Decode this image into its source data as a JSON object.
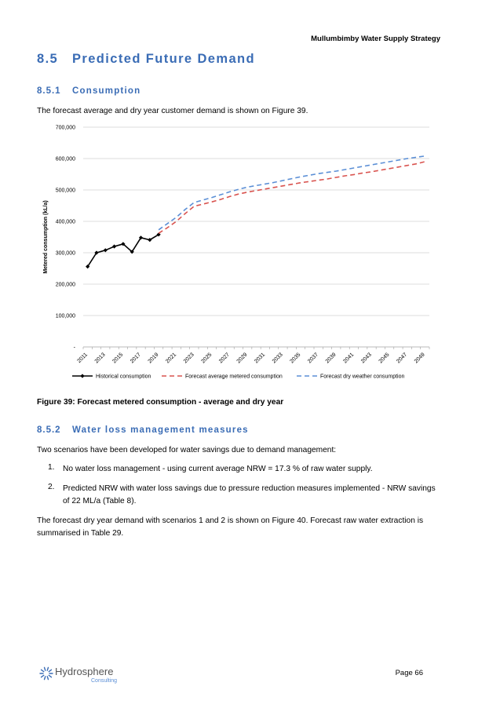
{
  "header": {
    "doc_title": "Mullumbimby Water Supply Strategy"
  },
  "section": {
    "number": "8.5",
    "title": "Predicted Future Demand"
  },
  "consumption": {
    "number": "8.5.1",
    "title": "Consumption",
    "intro": "The forecast average and dry year customer demand is shown on Figure 39."
  },
  "figure": {
    "caption": "Figure 39: Forecast metered consumption - average and dry year"
  },
  "chart_data": {
    "type": "line",
    "ylabel": "Metered consumption (kL/a)",
    "ylim": [
      0,
      700000
    ],
    "yticks": [
      {
        "label": "-",
        "value": 0
      },
      {
        "label": "100,000",
        "value": 100000
      },
      {
        "label": "200,000",
        "value": 200000
      },
      {
        "label": "300,000",
        "value": 300000
      },
      {
        "label": "400,000",
        "value": 400000
      },
      {
        "label": "500,000",
        "value": 500000
      },
      {
        "label": "600,000",
        "value": 600000
      },
      {
        "label": "700,000",
        "value": 700000
      }
    ],
    "xlim": [
      2011,
      2050
    ],
    "xticks": [
      "2011",
      "2013",
      "2015",
      "2017",
      "2019",
      "2021",
      "2023",
      "2025",
      "2027",
      "2029",
      "2031",
      "2033",
      "2035",
      "2037",
      "2039",
      "2041",
      "2043",
      "2045",
      "2047",
      "2049"
    ],
    "grid": true,
    "legend_position": "bottom",
    "series": [
      {
        "name": "Historical consumption",
        "color": "#000000",
        "style": "solid-markers",
        "x": [
          2011,
          2012,
          2013,
          2014,
          2015,
          2016,
          2017,
          2018,
          2019
        ],
        "y": [
          256000,
          300000,
          308000,
          320000,
          328000,
          303000,
          348000,
          341000,
          358000
        ]
      },
      {
        "name": "Forecast average metered consumption",
        "color": "#d9534f",
        "style": "dashed",
        "x": [
          2019,
          2020,
          2021,
          2022,
          2023,
          2024,
          2025,
          2026,
          2027,
          2028,
          2029,
          2030,
          2031,
          2032,
          2033,
          2034,
          2035,
          2036,
          2037,
          2038,
          2039,
          2040,
          2041,
          2042,
          2043,
          2044,
          2045,
          2046,
          2047,
          2048,
          2049
        ],
        "y": [
          362000,
          380000,
          400000,
          425000,
          448000,
          455000,
          462000,
          470000,
          479000,
          487000,
          493000,
          498000,
          503000,
          508000,
          513000,
          518000,
          523000,
          527000,
          531000,
          535000,
          540000,
          545000,
          549000,
          554000,
          558000,
          563000,
          568000,
          573000,
          578000,
          583000,
          590000
        ]
      },
      {
        "name": "Forecast dry weather consumption",
        "color": "#5b8fd6",
        "style": "dashed",
        "x": [
          2019,
          2020,
          2021,
          2022,
          2023,
          2024,
          2025,
          2026,
          2027,
          2028,
          2029,
          2030,
          2031,
          2032,
          2033,
          2034,
          2035,
          2036,
          2037,
          2038,
          2039,
          2040,
          2041,
          2042,
          2043,
          2044,
          2045,
          2046,
          2047,
          2048,
          2049
        ],
        "y": [
          373000,
          393000,
          413000,
          438000,
          460000,
          468000,
          476000,
          485000,
          494000,
          502000,
          509000,
          514000,
          519000,
          524000,
          530000,
          536000,
          542000,
          547000,
          552000,
          556000,
          560000,
          565000,
          570000,
          575000,
          580000,
          585000,
          590000,
          595000,
          600000,
          604000,
          608000
        ]
      }
    ]
  },
  "water_loss": {
    "number": "8.5.2",
    "title": "Water loss management measures",
    "intro": "Two scenarios have been developed for water savings due to demand management:",
    "items": [
      {
        "num": "1.",
        "text": "No water loss management - using current average NRW = 17.3 % of raw water supply."
      },
      {
        "num": "2.",
        "text": "Predicted NRW with water loss savings due to pressure reduction measures implemented - NRW savings of 22 ML/a (Table 8)."
      }
    ],
    "closing": "The forecast dry year demand with scenarios 1 and 2 is shown on Figure 40. Forecast raw water extraction is summarised in Table 29."
  },
  "footer": {
    "logo_text": "Hydrosphere",
    "logo_sub": "Consulting",
    "logo_colors": {
      "ring": "#3a6cb5",
      "sub": "#5b8fd6"
    },
    "page_label": "Page 66"
  }
}
